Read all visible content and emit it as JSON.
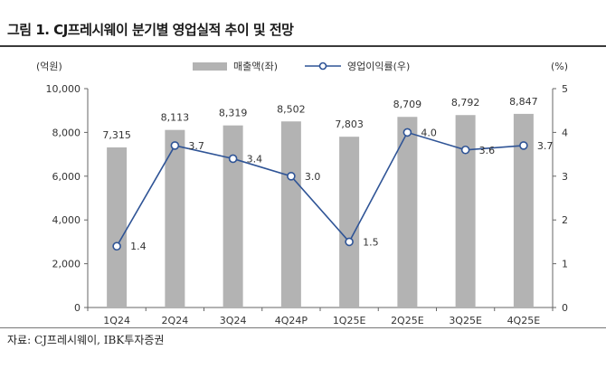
{
  "header": {
    "title": "그림 1. CJ프레시웨이 분기별 영업실적 추이 및 전망"
  },
  "footer": {
    "source": "자료: CJ프레시웨이, IBK투자증권"
  },
  "chart_data": {
    "type": "bar",
    "categories": [
      "1Q24",
      "2Q24",
      "3Q24",
      "4Q24P",
      "1Q25E",
      "2Q25E",
      "3Q25E",
      "4Q25E"
    ],
    "series": [
      {
        "name": "매출액(좌)",
        "type": "bar",
        "axis": "left",
        "color": "#b3b3b3",
        "values": [
          7315,
          8113,
          8319,
          8502,
          7803,
          8709,
          8792,
          8847
        ],
        "labels": [
          "7,315",
          "8,113",
          "8,319",
          "8,502",
          "7,803",
          "8,709",
          "8,792",
          "8,847"
        ]
      },
      {
        "name": "영업이익률(우)",
        "type": "line",
        "axis": "right",
        "color": "#2f5496",
        "values": [
          1.4,
          3.7,
          3.4,
          3.0,
          1.5,
          4.0,
          3.6,
          3.7
        ],
        "labels": [
          "1.4",
          "3.7",
          "3.4",
          "3.0",
          "1.5",
          "4.0",
          "3.6",
          "3.7"
        ]
      }
    ],
    "left_axis": {
      "label": "(억원)",
      "ylim": [
        0,
        10000
      ],
      "ticks": [
        0,
        2000,
        4000,
        6000,
        8000,
        10000
      ],
      "tick_labels": [
        "0",
        "2,000",
        "4,000",
        "6,000",
        "8,000",
        "10,000"
      ]
    },
    "right_axis": {
      "label": "(%)",
      "ylim": [
        0,
        5
      ],
      "ticks": [
        0,
        1,
        2,
        3,
        4,
        5
      ],
      "tick_labels": [
        "0",
        "1",
        "2",
        "3",
        "4",
        "5"
      ]
    },
    "legend_position": "top-center",
    "grid": false
  }
}
